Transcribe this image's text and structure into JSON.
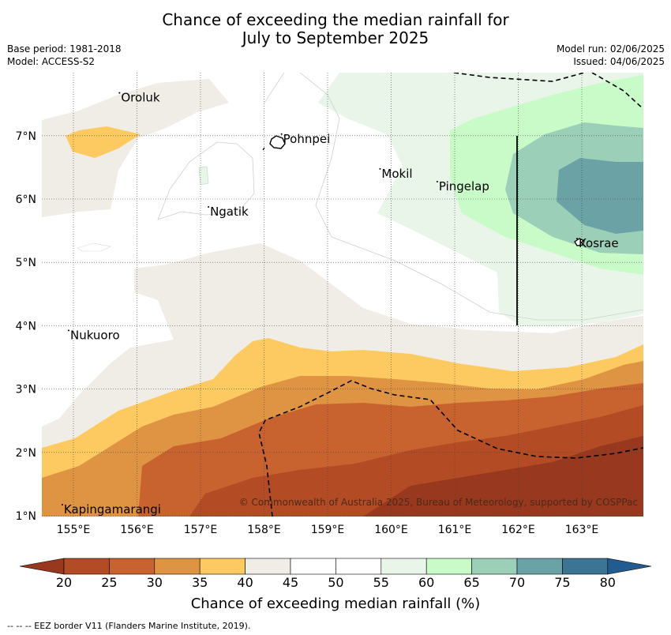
{
  "title_line1": "Chance of exceeding the median rainfall for",
  "title_line2": "July to September 2025",
  "base_period": "Base period: 1981-2018",
  "model": "Model: ACCESS-S2",
  "model_run": "Model run: 02/06/2025",
  "issued": "Issued: 04/06/2025",
  "places": [
    {
      "name": "Oroluk",
      "lon": 155.75,
      "lat": 7.6
    },
    {
      "name": "Pohnpei",
      "lon": 158.3,
      "lat": 6.95
    },
    {
      "name": "Mokil",
      "lon": 159.85,
      "lat": 6.4
    },
    {
      "name": "Pingelap",
      "lon": 160.75,
      "lat": 6.2
    },
    {
      "name": "Ngatik",
      "lon": 157.15,
      "lat": 5.8
    },
    {
      "name": "Kosrae",
      "lon": 162.95,
      "lat": 5.3
    },
    {
      "name": "Nukuoro",
      "lon": 154.95,
      "lat": 3.85
    },
    {
      "name": "Kapingamarangi",
      "lon": 154.85,
      "lat": 1.1
    }
  ],
  "lon_ticks": [
    "155°E",
    "156°E",
    "157°E",
    "158°E",
    "159°E",
    "160°E",
    "161°E",
    "162°E",
    "163°E"
  ],
  "lat_ticks": [
    "1°N",
    "2°N",
    "3°N",
    "4°N",
    "5°N",
    "6°N",
    "7°N"
  ],
  "copyright": "© Commonwealth of Australia 2025, Bureau of Meteorology, supported by COSPPac",
  "colorbar": {
    "label": "Chance of exceeding median rainfall (%)",
    "ticks": [
      "20",
      "25",
      "30",
      "35",
      "40",
      "45",
      "50",
      "55",
      "60",
      "65",
      "70",
      "75",
      "80"
    ],
    "colors": [
      "#98381f",
      "#b34b25",
      "#c8622f",
      "#df9444",
      "#fdca62",
      "#f0ece6",
      "#ffffff",
      "#ffffff",
      "#e9f5e9",
      "#c8fbc8",
      "#9ccfb8",
      "#6aa2a5",
      "#3b7593",
      "#225b8f"
    ]
  },
  "footer": "--  --  -- EEZ border V11 (Flanders Marine Institute, 2019)."
}
